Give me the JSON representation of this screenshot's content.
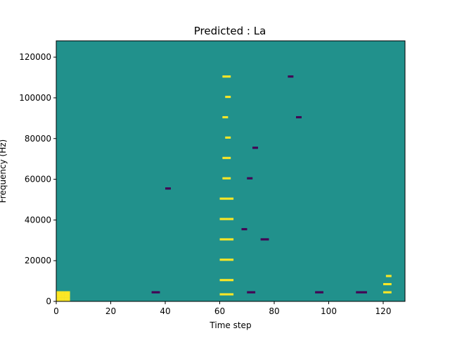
{
  "chart_data": {
    "type": "heatmap",
    "title": "Predicted : La",
    "xlabel": "Time step",
    "ylabel": "Frequency (Hz)",
    "xlim": [
      0,
      128
    ],
    "ylim": [
      0,
      128000
    ],
    "xticks": [
      0,
      20,
      40,
      60,
      80,
      100,
      120
    ],
    "yticks": [
      0,
      20000,
      40000,
      60000,
      80000,
      100000,
      120000
    ],
    "rows": 128,
    "cols": 128,
    "colormap": {
      "low": "#440154",
      "mid": "#21918c",
      "high": "#fde725"
    },
    "background_value": "mid",
    "high_cells": [
      [
        0,
        0
      ],
      [
        1,
        0
      ],
      [
        2,
        0
      ],
      [
        3,
        0
      ],
      [
        4,
        0
      ],
      [
        0,
        1
      ],
      [
        1,
        1
      ],
      [
        2,
        1
      ],
      [
        3,
        1
      ],
      [
        4,
        1
      ],
      [
        0,
        2
      ],
      [
        1,
        2
      ],
      [
        2,
        2
      ],
      [
        3,
        2
      ],
      [
        4,
        2
      ],
      [
        0,
        3
      ],
      [
        1,
        3
      ],
      [
        2,
        3
      ],
      [
        3,
        3
      ],
      [
        4,
        3
      ],
      [
        0,
        4
      ],
      [
        1,
        4
      ],
      [
        2,
        4
      ],
      [
        3,
        4
      ],
      [
        4,
        4
      ],
      [
        60,
        3
      ],
      [
        61,
        3
      ],
      [
        62,
        3
      ],
      [
        63,
        3
      ],
      [
        64,
        3
      ],
      [
        60,
        10
      ],
      [
        61,
        10
      ],
      [
        62,
        10
      ],
      [
        63,
        10
      ],
      [
        64,
        10
      ],
      [
        60,
        20
      ],
      [
        61,
        20
      ],
      [
        62,
        20
      ],
      [
        63,
        20
      ],
      [
        64,
        20
      ],
      [
        60,
        30
      ],
      [
        61,
        30
      ],
      [
        62,
        30
      ],
      [
        63,
        30
      ],
      [
        64,
        30
      ],
      [
        60,
        40
      ],
      [
        61,
        40
      ],
      [
        62,
        40
      ],
      [
        63,
        40
      ],
      [
        64,
        40
      ],
      [
        60,
        50
      ],
      [
        61,
        50
      ],
      [
        62,
        50
      ],
      [
        63,
        50
      ],
      [
        64,
        50
      ],
      [
        61,
        60
      ],
      [
        62,
        60
      ],
      [
        63,
        60
      ],
      [
        61,
        70
      ],
      [
        62,
        70
      ],
      [
        63,
        70
      ],
      [
        62,
        80
      ],
      [
        63,
        80
      ],
      [
        61,
        90
      ],
      [
        62,
        90
      ],
      [
        62,
        100
      ],
      [
        63,
        100
      ],
      [
        61,
        110
      ],
      [
        62,
        110
      ],
      [
        63,
        110
      ],
      [
        120,
        4
      ],
      [
        121,
        4
      ],
      [
        122,
        4
      ],
      [
        120,
        8
      ],
      [
        121,
        8
      ],
      [
        122,
        8
      ],
      [
        121,
        12
      ],
      [
        122,
        12
      ]
    ],
    "low_cells": [
      [
        35,
        4
      ],
      [
        36,
        4
      ],
      [
        37,
        4
      ],
      [
        70,
        4
      ],
      [
        71,
        4
      ],
      [
        72,
        4
      ],
      [
        95,
        4
      ],
      [
        96,
        4
      ],
      [
        97,
        4
      ],
      [
        110,
        4
      ],
      [
        111,
        4
      ],
      [
        112,
        4
      ],
      [
        113,
        4
      ],
      [
        75,
        30
      ],
      [
        76,
        30
      ],
      [
        77,
        30
      ],
      [
        68,
        35
      ],
      [
        69,
        35
      ],
      [
        70,
        60
      ],
      [
        71,
        60
      ],
      [
        72,
        75
      ],
      [
        73,
        75
      ],
      [
        40,
        55
      ],
      [
        41,
        55
      ],
      [
        88,
        90
      ],
      [
        89,
        90
      ],
      [
        85,
        110
      ],
      [
        86,
        110
      ]
    ],
    "description": "Time-frequency prediction grid: mostly mid-value cells with scattered high and low cells; dense high-valued band around time steps 60-65 across most frequencies."
  }
}
